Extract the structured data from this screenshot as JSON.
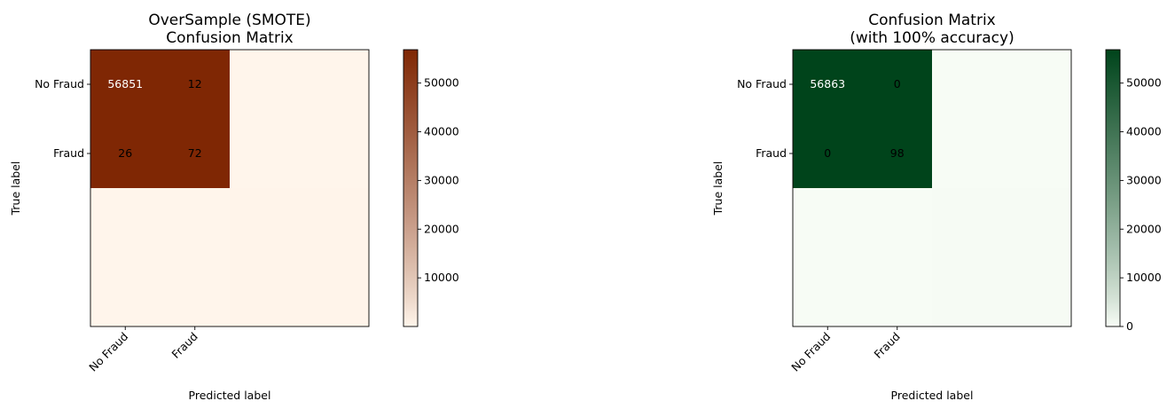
{
  "chart_data": [
    {
      "type": "heatmap",
      "title_lines": [
        "OverSample (SMOTE)",
        "Confusion Matrix"
      ],
      "xlabel": "Predicted label",
      "ylabel": "True label",
      "x_categories": [
        "No Fraud",
        "Fraud"
      ],
      "y_categories": [
        "No Fraud",
        "Fraud"
      ],
      "matrix": [
        [
          56851,
          12
        ],
        [
          26,
          72
        ]
      ],
      "colormap": "Oranges",
      "color_low": "#fff5eb",
      "color_high": "#7f2704",
      "colorbar_ticks": [
        10000,
        20000,
        30000,
        40000,
        50000
      ],
      "colorbar_range": [
        12,
        56851
      ]
    },
    {
      "type": "heatmap",
      "title_lines": [
        "Confusion Matrix",
        "(with 100% accuracy)"
      ],
      "xlabel": "Predicted label",
      "ylabel": "True label",
      "x_categories": [
        "No Fraud",
        "Fraud"
      ],
      "y_categories": [
        "No Fraud",
        "Fraud"
      ],
      "matrix": [
        [
          56863,
          0
        ],
        [
          0,
          98
        ]
      ],
      "colormap": "Greens",
      "color_low": "#f7fcf5",
      "color_high": "#00441b",
      "colorbar_ticks": [
        0,
        10000,
        20000,
        30000,
        40000,
        50000
      ],
      "colorbar_range": [
        0,
        56863
      ]
    }
  ]
}
